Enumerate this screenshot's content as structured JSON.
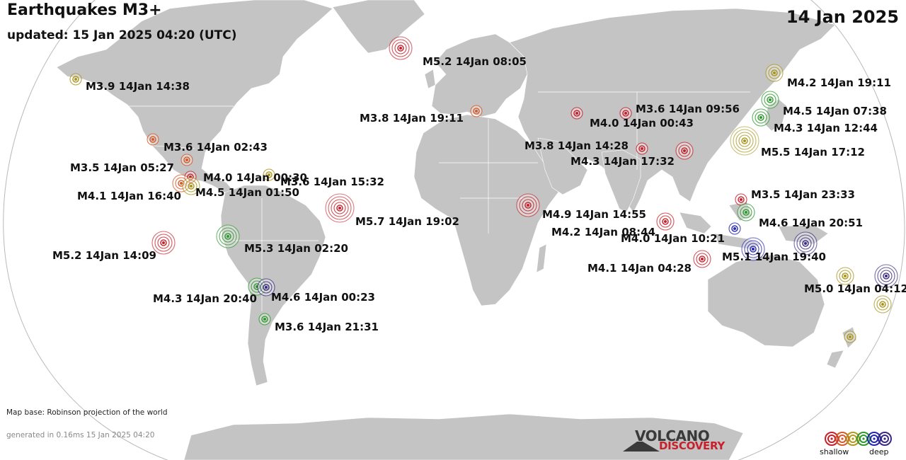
{
  "header": {
    "title": "Earthquakes M3+",
    "updated": "updated: 15 Jan 2025 04:20 (UTC)",
    "date": "14 Jan 2025"
  },
  "footer": {
    "map_base": "Map base: Robinson projection of the world",
    "generated": "generated in 0.16ms 15 Jan 2025 04:20"
  },
  "logo": {
    "line1": "VOLCANO",
    "line2": "DISCOVERY"
  },
  "legend": {
    "shallow_label": "shallow",
    "deep_label": "deep",
    "depth_colors": [
      "#c8202a",
      "#d65a2a",
      "#b29a1e",
      "#2e9a2e",
      "#2626b5",
      "#3a2a80"
    ]
  },
  "colors": {
    "land": "#c4c4c4",
    "ocean": "#ffffff",
    "red": "#c8202a",
    "orange": "#d65a2a",
    "olive": "#a8961c",
    "green": "#2e9a2e",
    "blue": "#2626b5",
    "navy": "#3a2a80"
  },
  "earthquakes": [
    {
      "label": "M5.2 14Jan 08:05",
      "magnitude": 5.2,
      "depth_class": "red"
    },
    {
      "label": "M3.9 14Jan 14:38",
      "magnitude": 3.9,
      "depth_class": "olive"
    },
    {
      "label": "M3.8 14Jan 19:11",
      "magnitude": 3.8,
      "depth_class": "orange"
    },
    {
      "label": "M3.6 14Jan 09:56",
      "magnitude": 3.6,
      "depth_class": "red"
    },
    {
      "label": "M4.0 14Jan 00:43",
      "magnitude": 4.0,
      "depth_class": "red"
    },
    {
      "label": "M4.2 14Jan 19:11",
      "magnitude": 4.2,
      "depth_class": "olive"
    },
    {
      "label": "M4.5 14Jan 07:38",
      "magnitude": 4.5,
      "depth_class": "green"
    },
    {
      "label": "M4.3 14Jan 12:44",
      "magnitude": 4.3,
      "depth_class": "green"
    },
    {
      "label": "M5.5 14Jan 17:12",
      "magnitude": 5.5,
      "depth_class": "olive"
    },
    {
      "label": "M3.8 14Jan 14:28",
      "magnitude": 3.8,
      "depth_class": "red"
    },
    {
      "label": "M4.3 14Jan 17:32",
      "magnitude": 4.3,
      "depth_class": "red"
    },
    {
      "label": "M3.6 14Jan 02:43",
      "magnitude": 3.6,
      "depth_class": "orange"
    },
    {
      "label": "M3.5 14Jan 05:27",
      "magnitude": 3.5,
      "depth_class": "orange"
    },
    {
      "label": "M4.0 14Jan 00:30",
      "magnitude": 4.0,
      "depth_class": "red"
    },
    {
      "label": "M3.6 14Jan 15:32",
      "magnitude": 3.6,
      "depth_class": "olive"
    },
    {
      "label": "M4.1 14Jan 16:40",
      "magnitude": 4.1,
      "depth_class": "orange"
    },
    {
      "label": "M4.5 14Jan 01:50",
      "magnitude": 4.5,
      "depth_class": "olive"
    },
    {
      "label": "M5.7 14Jan 19:02",
      "magnitude": 5.7,
      "depth_class": "red"
    },
    {
      "label": "M4.9 14Jan 14:55",
      "magnitude": 4.9,
      "depth_class": "red"
    },
    {
      "label": "M3.5 14Jan 23:33",
      "magnitude": 3.5,
      "depth_class": "red"
    },
    {
      "label": "M4.6 14Jan 20:51",
      "magnitude": 4.6,
      "depth_class": "green"
    },
    {
      "label": "M4.2 14Jan 08:44",
      "magnitude": 4.2,
      "depth_class": "red"
    },
    {
      "label": "M4.0 14Jan 10:21",
      "magnitude": 4.0,
      "depth_class": "blue"
    },
    {
      "label": "M5.1 14Jan 19:40",
      "magnitude": 5.1,
      "depth_class": "blue"
    },
    {
      "label": "M4.1 14Jan 04:28",
      "magnitude": 4.1,
      "depth_class": "red"
    },
    {
      "label": "M5.0 14Jan 04:12",
      "magnitude": 5.0,
      "depth_class": "navy"
    },
    {
      "label": "M5.2 14Jan 14:09",
      "magnitude": 5.2,
      "depth_class": "red"
    },
    {
      "label": "M5.3 14Jan 02:20",
      "magnitude": 5.3,
      "depth_class": "green"
    },
    {
      "label": "M4.3 14Jan 20:40",
      "magnitude": 4.3,
      "depth_class": "green"
    },
    {
      "label": "M4.6 14Jan 00:23",
      "magnitude": 4.6,
      "depth_class": "navy"
    },
    {
      "label": "M3.6 14Jan 21:31",
      "magnitude": 3.6,
      "depth_class": "green"
    }
  ],
  "unlabeled_events": [
    {
      "magnitude": 4.1,
      "depth_class": "olive"
    },
    {
      "magnitude": 4.4,
      "depth_class": "olive"
    },
    {
      "magnitude": 3.9,
      "depth_class": "olive"
    },
    {
      "magnitude": 4.7,
      "depth_class": "navy"
    }
  ]
}
